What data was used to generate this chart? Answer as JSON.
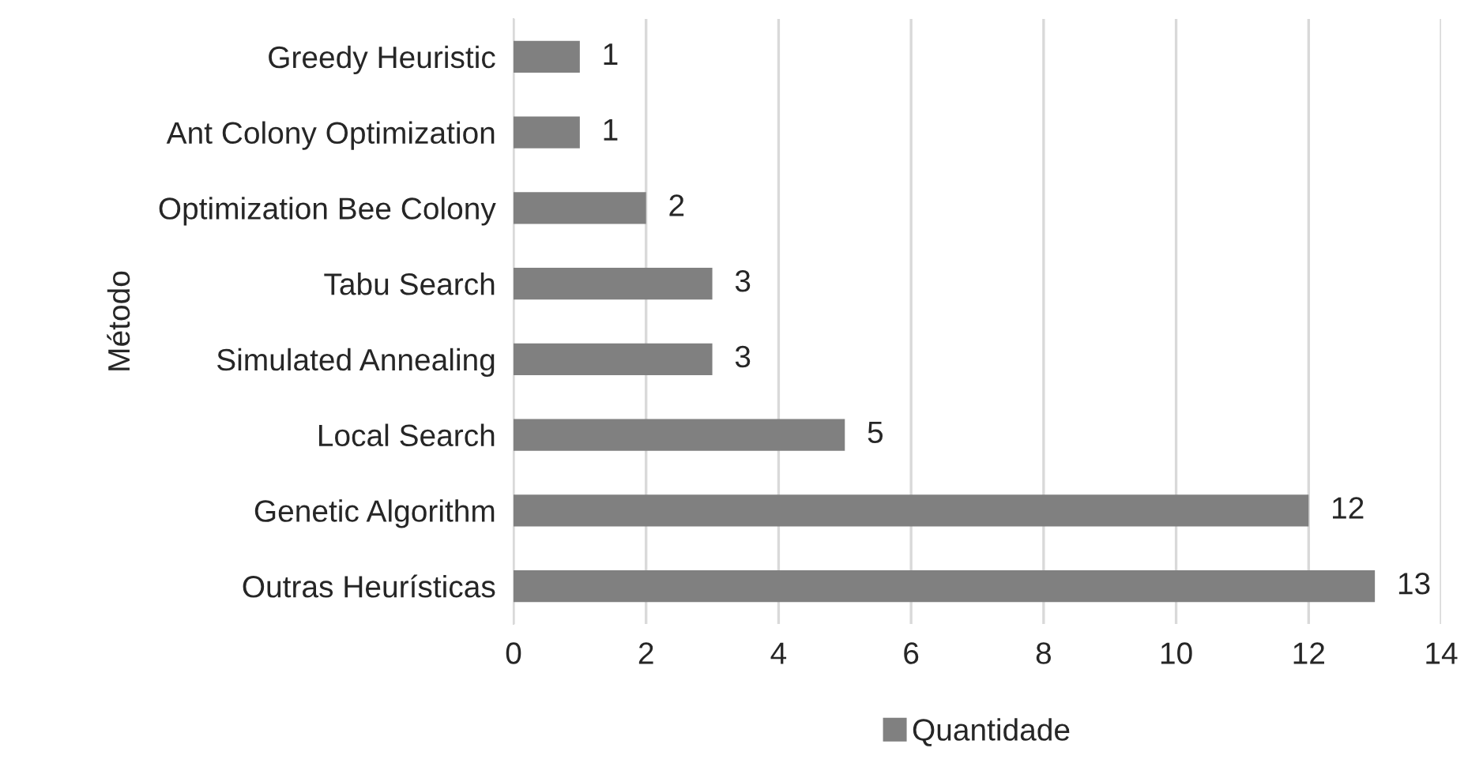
{
  "chart_data": {
    "type": "bar",
    "orientation": "horizontal",
    "categories": [
      "Greedy Heuristic",
      "Ant Colony Optimization",
      "Optimization Bee Colony",
      "Tabu Search",
      "Simulated Annealing",
      "Local Search",
      "Genetic Algorithm",
      "Outras Heurísticas"
    ],
    "series": [
      {
        "name": "Quantidade",
        "color": "#808080",
        "values": [
          1,
          1,
          2,
          3,
          3,
          5,
          12,
          13
        ]
      }
    ],
    "ylabel": "Método",
    "xlim": [
      0,
      14
    ],
    "xticks": [
      0,
      2,
      4,
      6,
      8,
      10,
      12,
      14
    ],
    "grid": "x",
    "legend": "bottom",
    "data_labels": true
  }
}
